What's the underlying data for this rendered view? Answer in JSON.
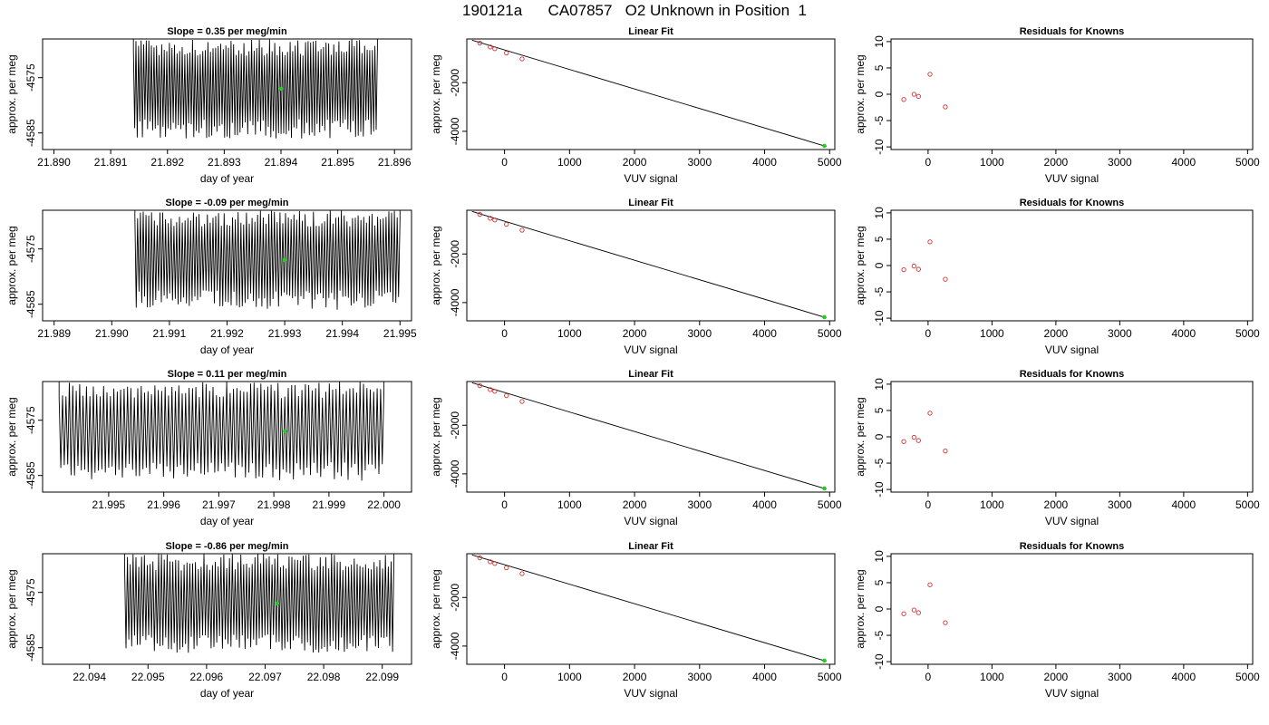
{
  "page": {
    "title": "190121a      CA07857   O2 Unknown in Position  1"
  },
  "colors": {
    "trace": "#000000",
    "unknown_point": "#22cc22",
    "known_points": "#cc3333",
    "axis": "#000000"
  },
  "chart_data": [
    {
      "type": "line",
      "panel": "time-series-1",
      "title": "Slope =  0.35  per meg/min",
      "xlabel": "day of year",
      "ylabel": "approx. per meg",
      "xlim": [
        21.8898,
        21.8963
      ],
      "ylim": [
        -4588,
        -4568
      ],
      "xticks": [
        "21.890",
        "21.891",
        "21.892",
        "21.893",
        "21.894",
        "21.895",
        "21.896"
      ],
      "xtick_values": [
        21.89,
        21.891,
        21.892,
        21.893,
        21.894,
        21.895,
        21.896
      ],
      "yticks": [
        "-4575",
        "-4585"
      ],
      "ytick_values": [
        -4575,
        -4585
      ],
      "trace_range": [
        21.8914,
        21.8957
      ],
      "trace_y_range": [
        -4586,
        -4568
      ],
      "unknown_point": {
        "x": 21.894,
        "y": -4577
      }
    },
    {
      "type": "scatter",
      "panel": "linear-fit-1",
      "title": "Linear Fit",
      "xlabel": "VUV signal",
      "ylabel": "approx. per meg",
      "xlim": [
        -580,
        5080
      ],
      "ylim": [
        -4750,
        -200
      ],
      "xticks": [
        "0",
        "1000",
        "2000",
        "3000",
        "4000",
        "5000"
      ],
      "xtick_values": [
        0,
        1000,
        2000,
        3000,
        4000,
        5000
      ],
      "yticks": [
        "-2000",
        "-4000"
      ],
      "ytick_values": [
        -2000,
        -4000
      ],
      "known_x": [
        -380,
        -220,
        -150,
        30,
        270
      ],
      "known_y": [
        -370,
        -530,
        -600,
        -780,
        -1020
      ],
      "fit_line": [
        [
          -500,
          -250
        ],
        [
          4950,
          -4625
        ]
      ],
      "unknown_point": {
        "x": 4920,
        "y": -4600
      }
    },
    {
      "type": "scatter",
      "panel": "residuals-1",
      "title": "Residuals for Knowns",
      "xlabel": "VUV signal",
      "ylabel": "approx. per meg",
      "xlim": [
        -580,
        5080
      ],
      "ylim": [
        -10.5,
        10.5
      ],
      "xticks": [
        "0",
        "1000",
        "2000",
        "3000",
        "4000",
        "5000"
      ],
      "xtick_values": [
        0,
        1000,
        2000,
        3000,
        4000,
        5000
      ],
      "yticks": [
        "-10",
        "-5",
        "0",
        "5",
        "10"
      ],
      "ytick_values": [
        -10,
        -5,
        0,
        5,
        10
      ],
      "known_x": [
        -380,
        -220,
        -150,
        30,
        270
      ],
      "known_y": [
        -1.0,
        0.0,
        -0.4,
        3.8,
        -2.4
      ]
    },
    {
      "type": "line",
      "panel": "time-series-2",
      "title": "Slope =  -0.09  per meg/min",
      "xlabel": "day of year",
      "ylabel": "approx. per meg",
      "xlim": [
        21.9888,
        21.9952
      ],
      "ylim": [
        -4588,
        -4568
      ],
      "xticks": [
        "21.989",
        "21.990",
        "21.991",
        "21.992",
        "21.993",
        "21.994",
        "21.995"
      ],
      "xtick_values": [
        21.989,
        21.99,
        21.991,
        21.992,
        21.993,
        21.994,
        21.995
      ],
      "yticks": [
        "-4575",
        "-4585"
      ],
      "ytick_values": [
        -4575,
        -4585
      ],
      "trace_range": [
        21.9904,
        21.995
      ],
      "trace_y_range": [
        -4586,
        -4568
      ],
      "unknown_point": {
        "x": 21.993,
        "y": -4577
      }
    },
    {
      "type": "scatter",
      "panel": "linear-fit-2",
      "title": "Linear Fit",
      "xlabel": "VUV signal",
      "ylabel": "approx. per meg",
      "xlim": [
        -580,
        5080
      ],
      "ylim": [
        -4750,
        -200
      ],
      "xticks": [
        "0",
        "1000",
        "2000",
        "3000",
        "4000",
        "5000"
      ],
      "xtick_values": [
        0,
        1000,
        2000,
        3000,
        4000,
        5000
      ],
      "yticks": [
        "-2000",
        "-4000"
      ],
      "ytick_values": [
        -2000,
        -4000
      ],
      "known_x": [
        -380,
        -220,
        -150,
        30,
        270
      ],
      "known_y": [
        -370,
        -530,
        -600,
        -780,
        -1020
      ],
      "fit_line": [
        [
          -500,
          -250
        ],
        [
          4950,
          -4625
        ]
      ],
      "unknown_point": {
        "x": 4920,
        "y": -4600
      }
    },
    {
      "type": "scatter",
      "panel": "residuals-2",
      "title": "Residuals for Knowns",
      "xlabel": "VUV signal",
      "ylabel": "approx. per meg",
      "xlim": [
        -580,
        5080
      ],
      "ylim": [
        -10.5,
        10.5
      ],
      "xticks": [
        "0",
        "1000",
        "2000",
        "3000",
        "4000",
        "5000"
      ],
      "xtick_values": [
        0,
        1000,
        2000,
        3000,
        4000,
        5000
      ],
      "yticks": [
        "-10",
        "-5",
        "0",
        "5",
        "10"
      ],
      "ytick_values": [
        -10,
        -5,
        0,
        5,
        10
      ],
      "known_x": [
        -380,
        -220,
        -150,
        30,
        270
      ],
      "known_y": [
        -0.8,
        -0.1,
        -0.7,
        4.5,
        -2.6
      ]
    },
    {
      "type": "line",
      "panel": "time-series-3",
      "title": "Slope =  0.11  per meg/min",
      "xlabel": "day of year",
      "ylabel": "approx. per meg",
      "xlim": [
        21.9938,
        22.0005
      ],
      "ylim": [
        -4588,
        -4568
      ],
      "xticks": [
        "21.995",
        "21.996",
        "21.997",
        "21.998",
        "21.999",
        "22.000"
      ],
      "xtick_values": [
        21.995,
        21.996,
        21.997,
        21.998,
        21.999,
        22.0
      ],
      "yticks": [
        "-4575",
        "-4585"
      ],
      "ytick_values": [
        -4575,
        -4585
      ],
      "trace_range": [
        21.9941,
        22.0
      ],
      "trace_y_range": [
        -4586,
        -4568
      ],
      "unknown_point": {
        "x": 21.9982,
        "y": -4577
      }
    },
    {
      "type": "scatter",
      "panel": "linear-fit-3",
      "title": "Linear Fit",
      "xlabel": "VUV signal",
      "ylabel": "approx. per meg",
      "xlim": [
        -580,
        5080
      ],
      "ylim": [
        -4750,
        -200
      ],
      "xticks": [
        "0",
        "1000",
        "2000",
        "3000",
        "4000",
        "5000"
      ],
      "xtick_values": [
        0,
        1000,
        2000,
        3000,
        4000,
        5000
      ],
      "yticks": [
        "-2000",
        "-4000"
      ],
      "ytick_values": [
        -2000,
        -4000
      ],
      "known_x": [
        -380,
        -220,
        -150,
        30,
        270
      ],
      "known_y": [
        -370,
        -530,
        -600,
        -780,
        -1020
      ],
      "fit_line": [
        [
          -500,
          -250
        ],
        [
          4950,
          -4625
        ]
      ],
      "unknown_point": {
        "x": 4920,
        "y": -4600
      }
    },
    {
      "type": "scatter",
      "panel": "residuals-3",
      "title": "Residuals for Knowns",
      "xlabel": "VUV signal",
      "ylabel": "approx. per meg",
      "xlim": [
        -580,
        5080
      ],
      "ylim": [
        -10.5,
        10.5
      ],
      "xticks": [
        "0",
        "1000",
        "2000",
        "3000",
        "4000",
        "5000"
      ],
      "xtick_values": [
        0,
        1000,
        2000,
        3000,
        4000,
        5000
      ],
      "yticks": [
        "-10",
        "-5",
        "0",
        "5",
        "10"
      ],
      "ytick_values": [
        -10,
        -5,
        0,
        5,
        10
      ],
      "known_x": [
        -380,
        -220,
        -150,
        30,
        270
      ],
      "known_y": [
        -0.9,
        -0.1,
        -0.7,
        4.5,
        -2.7
      ]
    },
    {
      "type": "line",
      "panel": "time-series-4",
      "title": "Slope =  -0.86  per meg/min",
      "xlabel": "day of year",
      "ylabel": "approx. per meg",
      "xlim": [
        22.0932,
        22.0995
      ],
      "ylim": [
        -4588,
        -4568
      ],
      "xticks": [
        "22.094",
        "22.095",
        "22.096",
        "22.097",
        "22.098",
        "22.099"
      ],
      "xtick_values": [
        22.094,
        22.095,
        22.096,
        22.097,
        22.098,
        22.099
      ],
      "yticks": [
        "-4575",
        "-4585"
      ],
      "ytick_values": [
        -4575,
        -4585
      ],
      "trace_range": [
        22.0946,
        22.0992
      ],
      "trace_y_range": [
        -4586,
        -4568
      ],
      "unknown_point": {
        "x": 22.0972,
        "y": -4577
      }
    },
    {
      "type": "scatter",
      "panel": "linear-fit-4",
      "title": "Linear Fit",
      "xlabel": "VUV signal",
      "ylabel": "approx. per meg",
      "xlim": [
        -580,
        5080
      ],
      "ylim": [
        -4750,
        -200
      ],
      "xticks": [
        "0",
        "1000",
        "2000",
        "3000",
        "4000",
        "5000"
      ],
      "xtick_values": [
        0,
        1000,
        2000,
        3000,
        4000,
        5000
      ],
      "yticks": [
        "-2000",
        "-4000"
      ],
      "ytick_values": [
        -2000,
        -4000
      ],
      "known_x": [
        -380,
        -220,
        -150,
        30,
        270
      ],
      "known_y": [
        -370,
        -530,
        -600,
        -780,
        -1020
      ],
      "fit_line": [
        [
          -500,
          -250
        ],
        [
          4950,
          -4625
        ]
      ],
      "unknown_point": {
        "x": 4920,
        "y": -4600
      }
    },
    {
      "type": "scatter",
      "panel": "residuals-4",
      "title": "Residuals for Knowns",
      "xlabel": "VUV signal",
      "ylabel": "approx. per meg",
      "xlim": [
        -580,
        5080
      ],
      "ylim": [
        -10.5,
        10.5
      ],
      "xticks": [
        "0",
        "1000",
        "2000",
        "3000",
        "4000",
        "5000"
      ],
      "xtick_values": [
        0,
        1000,
        2000,
        3000,
        4000,
        5000
      ],
      "yticks": [
        "-10",
        "-5",
        "0",
        "5",
        "10"
      ],
      "ytick_values": [
        -10,
        -5,
        0,
        5,
        10
      ],
      "known_x": [
        -380,
        -220,
        -150,
        30,
        270
      ],
      "known_y": [
        -0.9,
        -0.2,
        -0.7,
        4.6,
        -2.6
      ]
    }
  ]
}
